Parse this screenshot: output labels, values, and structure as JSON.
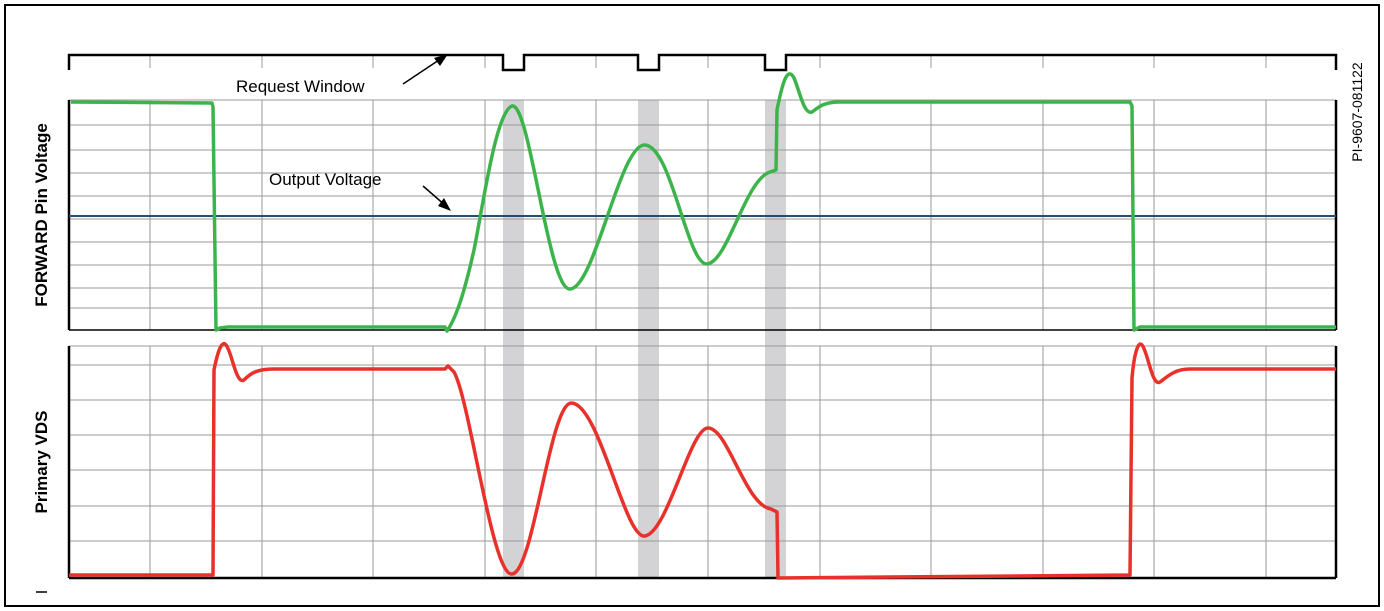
{
  "labels": {
    "request_window": "Request Window",
    "output_voltage": "Output Voltage",
    "forward_pin_voltage": "FORWARD Pin Voltage",
    "primary_vds": "Primary VDS",
    "figure_id": "PI-9607-081122"
  },
  "colors": {
    "forward_trace": "#3cb44b",
    "vds_trace": "#e8312a",
    "output_voltage_line": "#1f4e79",
    "request_window_highlight": "#d3d3d6",
    "grid": "#9a9a9a",
    "frame": "#000000"
  }
}
